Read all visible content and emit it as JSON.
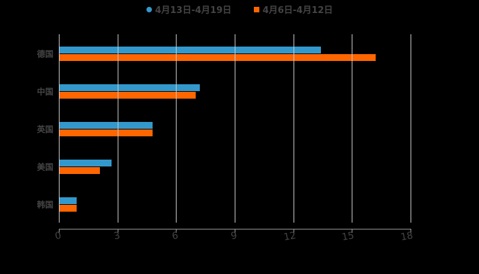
{
  "chart_data": {
    "type": "bar",
    "orientation": "horizontal",
    "categories": [
      "德国",
      "中国",
      "英国",
      "美国",
      "韩国"
    ],
    "series": [
      {
        "name": "4月13日-4月19日",
        "color": "#3399cc",
        "marker": "circle",
        "values": [
          13.4,
          7.2,
          4.8,
          2.7,
          0.9
        ]
      },
      {
        "name": "4月6日-4月12日",
        "color": "#ff6600",
        "marker": "square",
        "values": [
          16.2,
          7.0,
          4.8,
          2.1,
          0.9
        ]
      }
    ],
    "title": "",
    "xlabel": "",
    "ylabel": "",
    "xlim": [
      0,
      18
    ],
    "xticks": [
      "0",
      "3",
      "6",
      "9",
      "12",
      "15",
      "18"
    ],
    "grid": true,
    "legend_position": "top",
    "background": "#000000"
  },
  "legend": {
    "items": [
      {
        "label": "4月13日-4月19日"
      },
      {
        "label": "4月6日-4月12日"
      }
    ]
  }
}
